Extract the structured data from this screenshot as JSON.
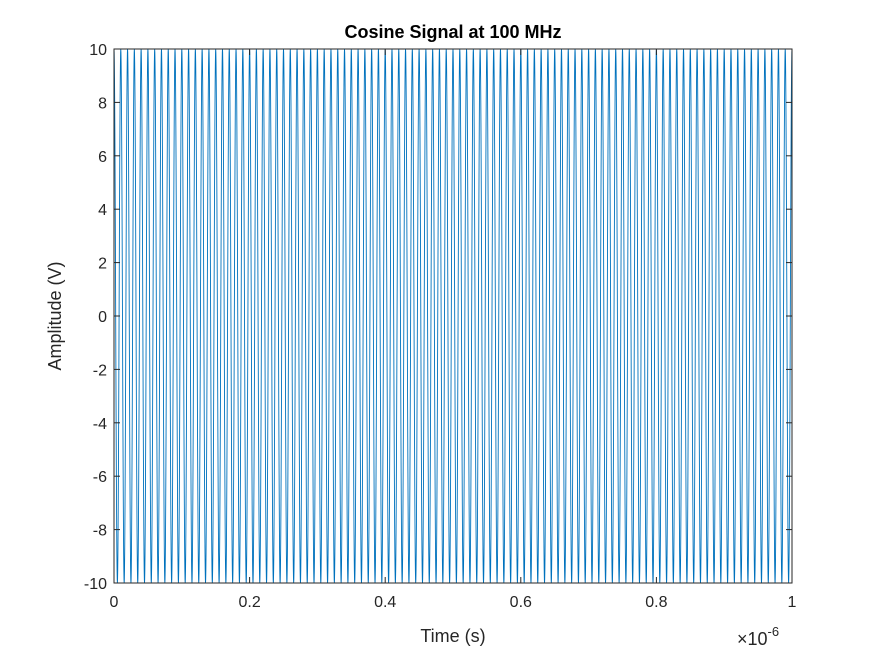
{
  "chart_data": {
    "type": "line",
    "title": "Cosine Signal at 100 MHz",
    "xlabel": "Time (s)",
    "ylabel": "Amplitude (V)",
    "x_exponent": {
      "base": "10",
      "power": "-6"
    },
    "xlim": [
      0,
      1
    ],
    "ylim": [
      -10,
      10
    ],
    "xticks": [
      0,
      0.2,
      0.4,
      0.6,
      0.8,
      1
    ],
    "xtick_labels": [
      "0",
      "0.2",
      "0.4",
      "0.6",
      "0.8",
      "1"
    ],
    "yticks": [
      -10,
      -8,
      -6,
      -4,
      -2,
      0,
      2,
      4,
      6,
      8,
      10
    ],
    "ytick_labels": [
      "-10",
      "-8",
      "-6",
      "-4",
      "-2",
      "0",
      "2",
      "4",
      "6",
      "8",
      "10"
    ],
    "grid": false,
    "series": [
      {
        "amplitude": 10,
        "frequency_cycles_per_us": 100,
        "color": "#0072BD"
      }
    ]
  }
}
